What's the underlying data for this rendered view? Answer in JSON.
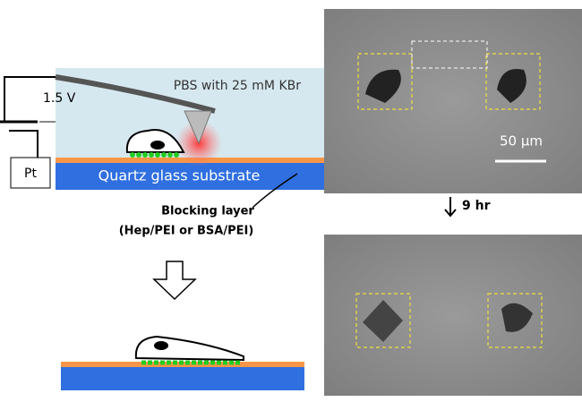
{
  "schematic": {
    "voltage": "1.5 V",
    "solution": "PBS with 25 mM KBr",
    "electrode": "Pt",
    "substrate": "Quartz glass substrate",
    "blocking_layer": "Blocking layer",
    "blocking_layer_options": "(Hep/PEI or BSA/PEI)"
  },
  "micrographs": {
    "scale_bar": "50 µm",
    "time_step": "9 hr"
  }
}
